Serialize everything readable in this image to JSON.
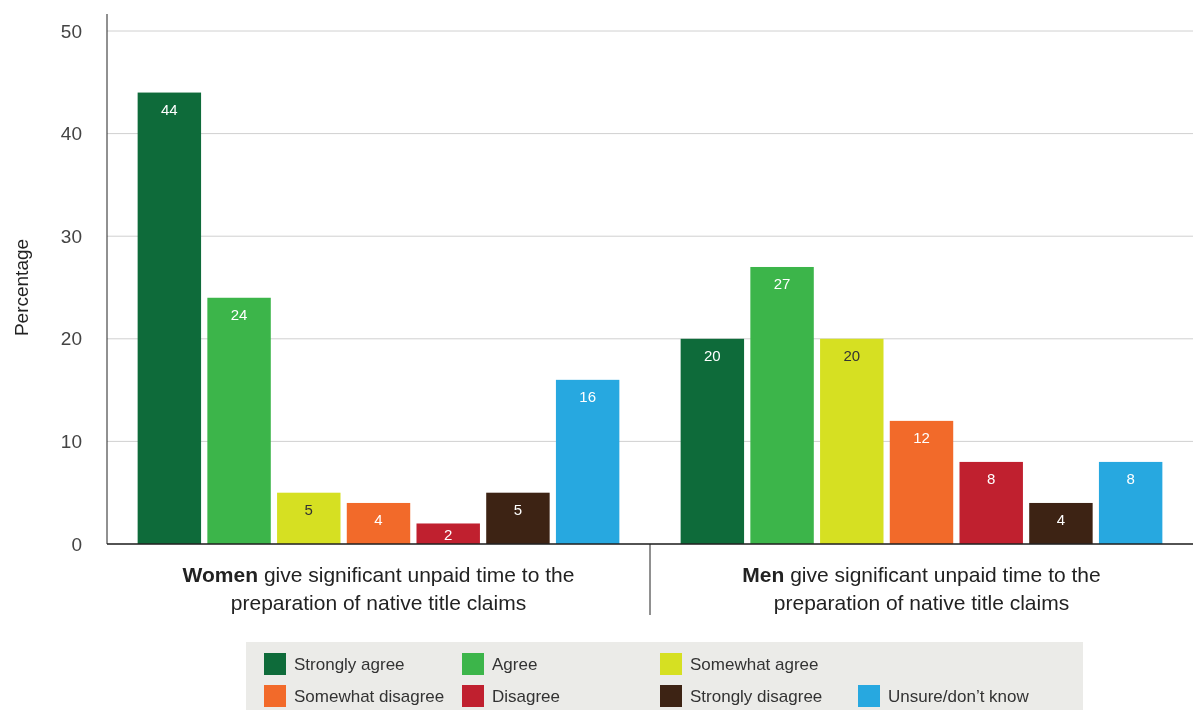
{
  "chart_data": {
    "type": "bar",
    "ylabel": "Percentage",
    "categories": [
      "Women give significant unpaid time to the preparation of native title claims",
      "Men give significant unpaid time to the preparation of native title claims"
    ],
    "series": [
      {
        "name": "Strongly agree",
        "color": "#0e6b3a",
        "values": [
          44,
          20
        ]
      },
      {
        "name": "Agree",
        "color": "#3cb54a",
        "values": [
          24,
          27
        ]
      },
      {
        "name": "Somewhat agree",
        "color": "#d6e022",
        "values": [
          5,
          20
        ]
      },
      {
        "name": "Somewhat disagree",
        "color": "#f26a2a",
        "values": [
          4,
          12
        ]
      },
      {
        "name": "Disagree",
        "color": "#c0202f",
        "values": [
          2,
          8
        ]
      },
      {
        "name": "Strongly disagree",
        "color": "#3d2314",
        "values": [
          5,
          4
        ]
      },
      {
        "name": "Unsure/don’t know",
        "color": "#27a8e0",
        "values": [
          16,
          8
        ]
      }
    ],
    "ylim": [
      0,
      50
    ],
    "yticks": [
      0,
      10,
      20,
      30,
      40,
      50
    ],
    "grid": "y",
    "legend": "bottom",
    "data_labels": true
  }
}
